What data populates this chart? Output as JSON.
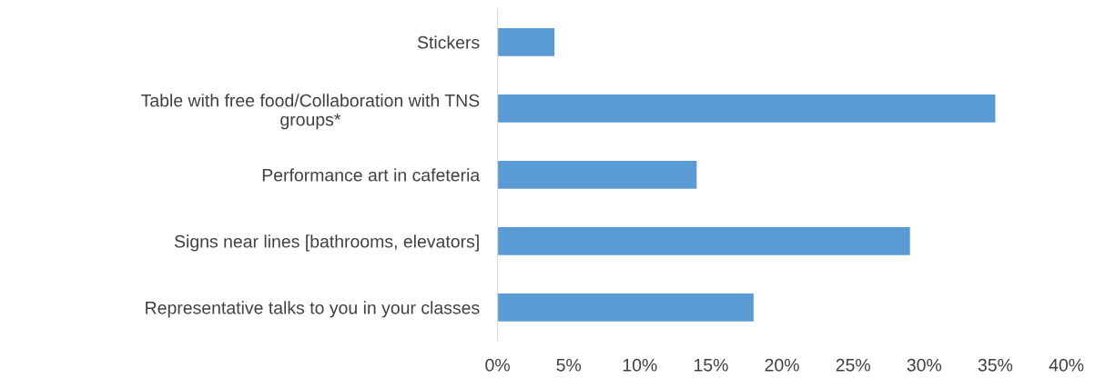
{
  "chart_data": {
    "type": "bar",
    "orientation": "horizontal",
    "categories": [
      "Stickers",
      "Table with free food/Collaboration with TNS\ngroups*",
      "Performance art in cafeteria",
      "Signs near lines [bathrooms, elevators]",
      "Representative talks to you in your classes"
    ],
    "values": [
      4,
      35,
      14,
      29,
      18
    ],
    "color": "#5b9bd5",
    "xlim": [
      0,
      40
    ],
    "xticks": [
      {
        "value": 0,
        "label": "0%"
      },
      {
        "value": 5,
        "label": "5%"
      },
      {
        "value": 10,
        "label": "10%"
      },
      {
        "value": 15,
        "label": "15%"
      },
      {
        "value": 20,
        "label": "20%"
      },
      {
        "value": 25,
        "label": "25%"
      },
      {
        "value": 30,
        "label": "30%"
      },
      {
        "value": 35,
        "label": "35%"
      },
      {
        "value": 40,
        "label": "40%"
      }
    ],
    "grid": false,
    "legend": false
  }
}
